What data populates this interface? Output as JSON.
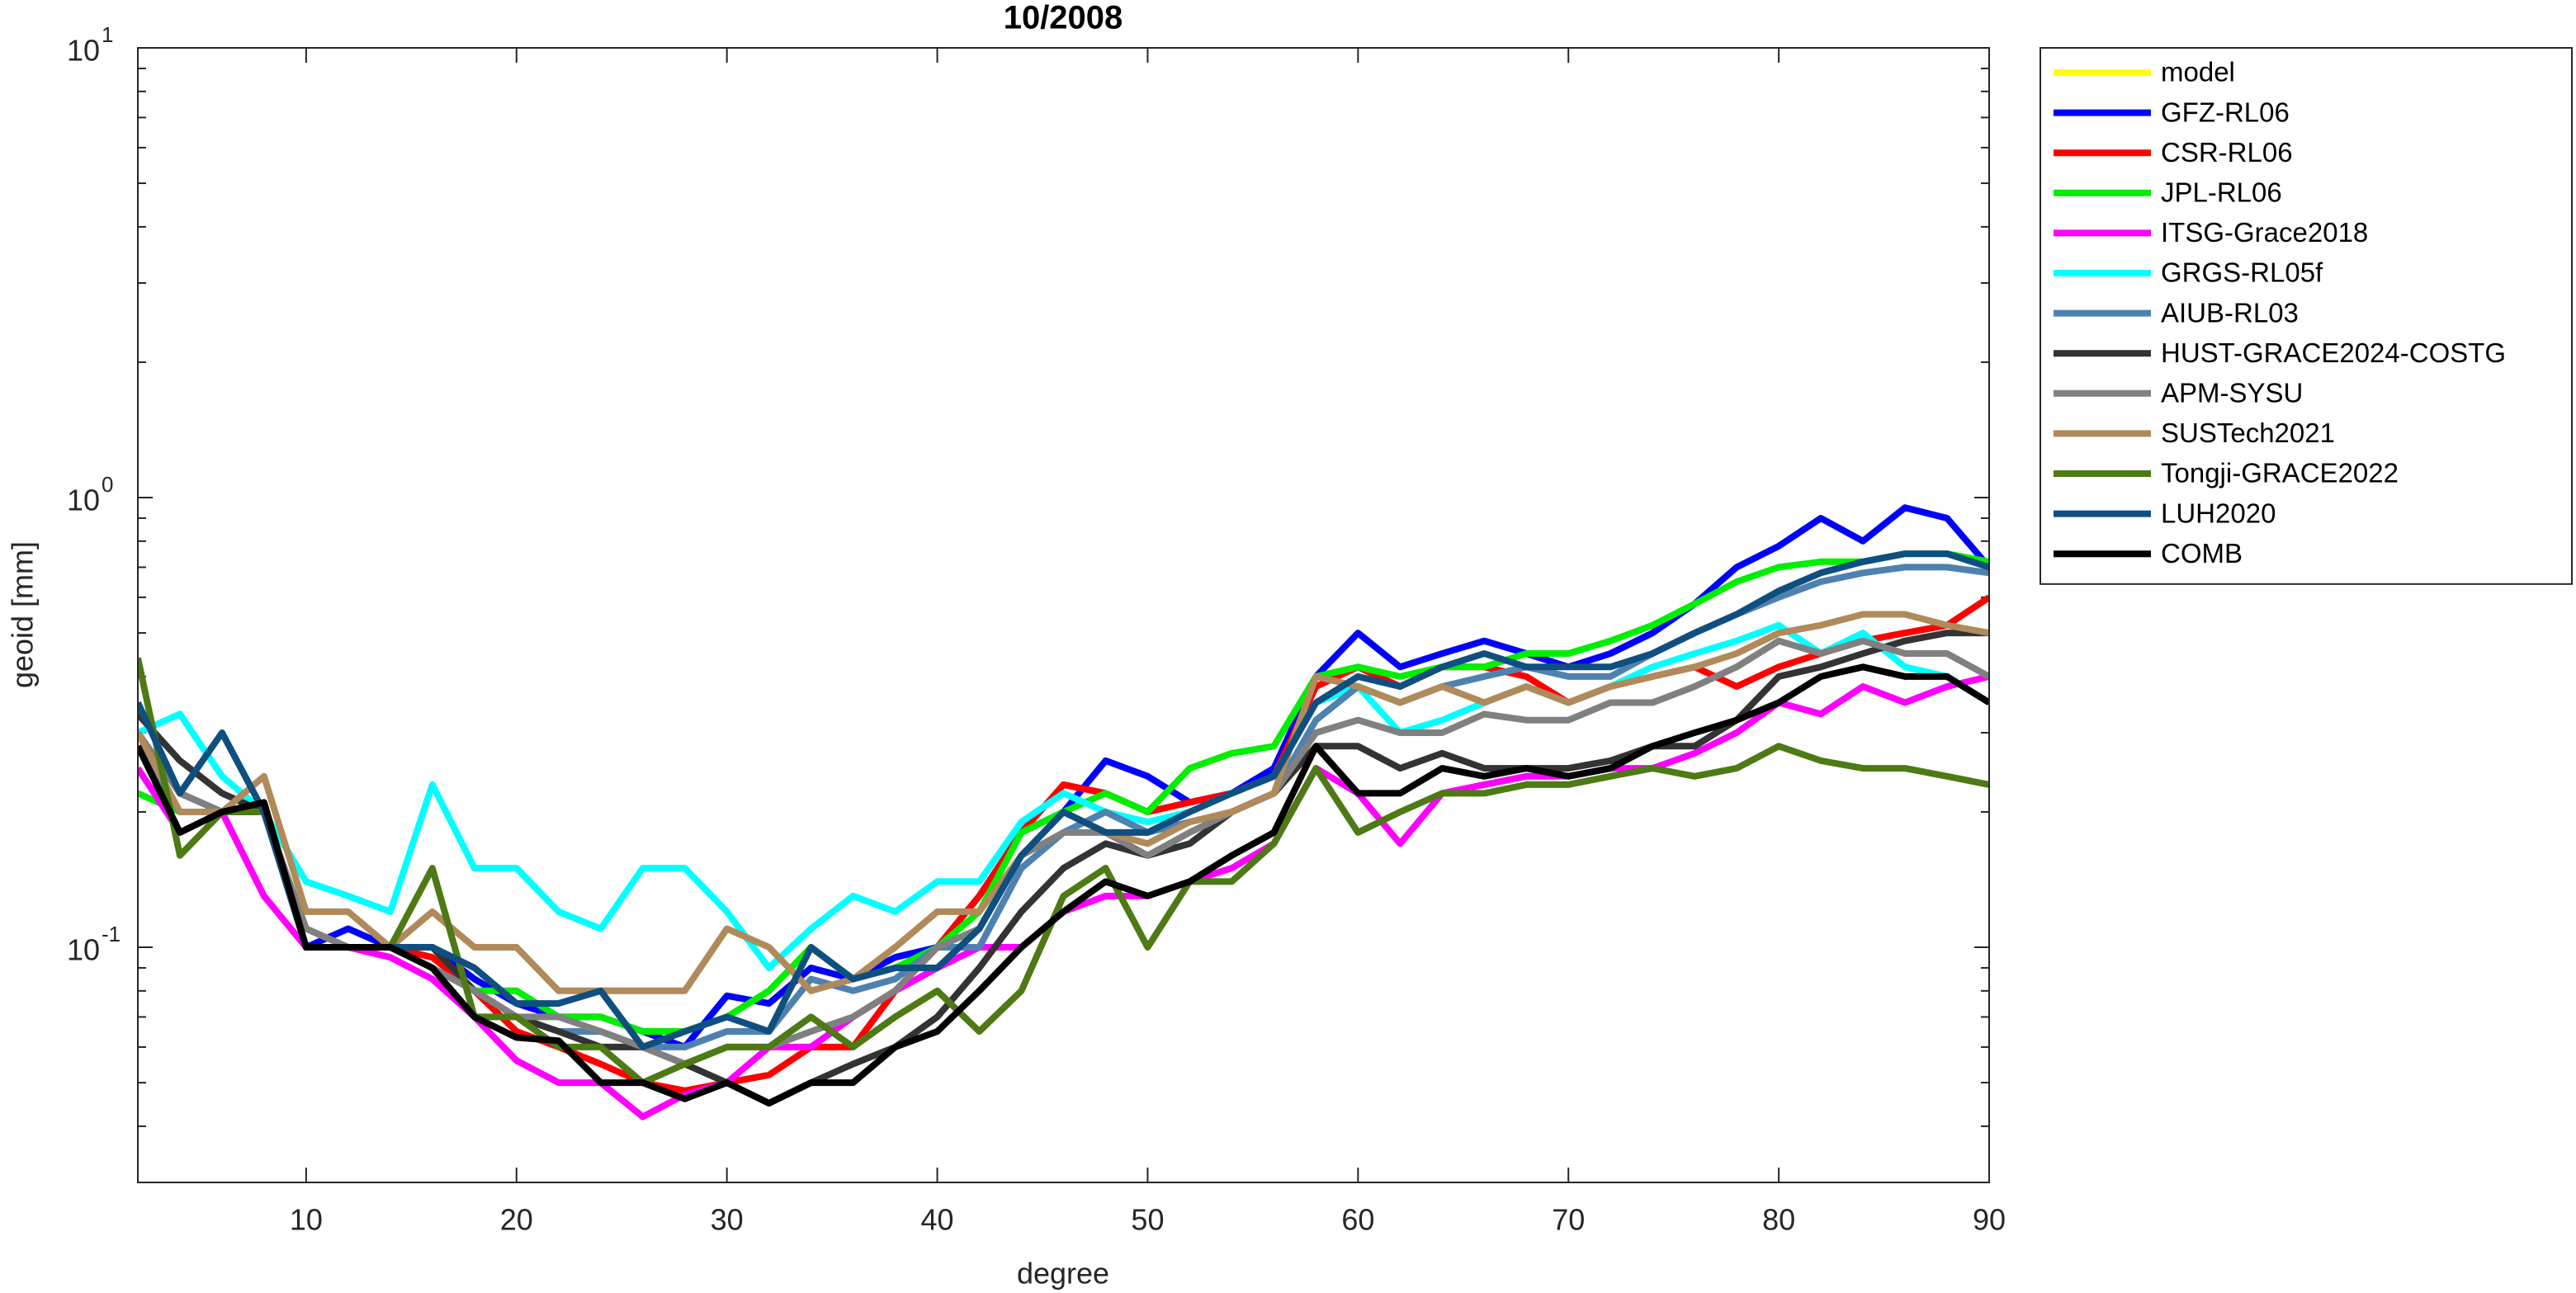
{
  "chart_data": {
    "type": "line",
    "title": "10/2008",
    "x_label": "degree",
    "y_label": "geoid [mm]",
    "log_y": true,
    "legend": "outside-right",
    "x": [
      2,
      4,
      6,
      8,
      10,
      12,
      14,
      16,
      18,
      20,
      22,
      24,
      26,
      28,
      30,
      32,
      34,
      36,
      38,
      40,
      42,
      44,
      46,
      48,
      50,
      52,
      54,
      56,
      58,
      60,
      62,
      64,
      66,
      68,
      70,
      72,
      74,
      76,
      78,
      80,
      82,
      84,
      86,
      88,
      90
    ],
    "xlim": [
      2,
      90
    ],
    "xticks": [
      10,
      20,
      30,
      40,
      50,
      60,
      70,
      80,
      90
    ],
    "ylim": [
      0.03,
      10
    ],
    "yticks": [
      {
        "value": 0.1,
        "label": "10",
        "exponent": "-1"
      },
      {
        "value": 1,
        "label": "10",
        "exponent": "0"
      },
      {
        "value": 10,
        "label": "10",
        "exponent": "1"
      }
    ],
    "minor_yticks": [
      0.03,
      0.04,
      0.05,
      0.06,
      0.07,
      0.08,
      0.09,
      0.2,
      0.3,
      0.4,
      0.5,
      0.6,
      0.7,
      0.8,
      0.9,
      2,
      3,
      4,
      5,
      6,
      7,
      8,
      9
    ],
    "series": [
      {
        "name": "model",
        "color": "#ffff00",
        "values": [
          null,
          null,
          null,
          null,
          null,
          null,
          null,
          null,
          null,
          null,
          null,
          null,
          null,
          null,
          null,
          null,
          null,
          null,
          null,
          null,
          null,
          null,
          null,
          null,
          null,
          null,
          null,
          null,
          null,
          null,
          null,
          null,
          null,
          null,
          null,
          null,
          null,
          null,
          null,
          null,
          null,
          null,
          null,
          null,
          null
        ]
      },
      {
        "name": "GFZ-RL06",
        "color": "#0000ff",
        "values": [
          0.3,
          0.22,
          0.2,
          0.2,
          0.1,
          0.11,
          0.1,
          0.1,
          0.085,
          0.075,
          0.07,
          0.07,
          0.065,
          0.06,
          0.078,
          0.075,
          0.09,
          0.085,
          0.095,
          0.1,
          0.13,
          0.18,
          0.2,
          0.26,
          0.24,
          0.21,
          0.22,
          0.25,
          0.4,
          0.5,
          0.42,
          0.45,
          0.48,
          0.45,
          0.42,
          0.45,
          0.5,
          0.58,
          0.7,
          0.78,
          0.9,
          0.8,
          0.95,
          0.9,
          0.7
        ]
      },
      {
        "name": "CSR-RL06",
        "color": "#ff0000",
        "values": [
          0.28,
          0.2,
          0.2,
          0.2,
          0.1,
          0.1,
          0.1,
          0.095,
          0.08,
          0.065,
          0.06,
          0.055,
          0.05,
          0.048,
          0.05,
          0.052,
          0.06,
          0.06,
          0.08,
          0.1,
          0.13,
          0.18,
          0.23,
          0.22,
          0.2,
          0.21,
          0.22,
          0.24,
          0.38,
          0.42,
          0.38,
          0.42,
          0.42,
          0.4,
          0.35,
          0.38,
          0.4,
          0.42,
          0.38,
          0.42,
          0.45,
          0.48,
          0.5,
          0.52,
          0.6
        ]
      },
      {
        "name": "JPL-RL06",
        "color": "#00ee00",
        "values": [
          0.22,
          0.2,
          0.2,
          0.2,
          0.1,
          0.1,
          0.1,
          0.1,
          0.08,
          0.08,
          0.07,
          0.07,
          0.065,
          0.065,
          0.07,
          0.08,
          0.1,
          0.085,
          0.09,
          0.1,
          0.12,
          0.18,
          0.2,
          0.22,
          0.2,
          0.25,
          0.27,
          0.28,
          0.4,
          0.42,
          0.4,
          0.42,
          0.42,
          0.45,
          0.45,
          0.48,
          0.52,
          0.58,
          0.65,
          0.7,
          0.72,
          0.72,
          0.75,
          0.75,
          0.72
        ]
      },
      {
        "name": "ITSG-Grace2018",
        "color": "#ff00ff",
        "values": [
          0.25,
          0.18,
          0.2,
          0.13,
          0.1,
          0.1,
          0.095,
          0.085,
          0.07,
          0.056,
          0.05,
          0.05,
          0.042,
          0.047,
          0.05,
          0.06,
          0.06,
          0.07,
          0.08,
          0.09,
          0.1,
          0.1,
          0.12,
          0.13,
          0.13,
          0.14,
          0.15,
          0.17,
          0.25,
          0.22,
          0.17,
          0.22,
          0.23,
          0.24,
          0.24,
          0.25,
          0.25,
          0.27,
          0.3,
          0.35,
          0.33,
          0.38,
          0.35,
          0.38,
          0.4
        ]
      },
      {
        "name": "GRGS-RL05f",
        "color": "#00ffff",
        "values": [
          0.3,
          0.33,
          0.24,
          0.2,
          0.14,
          0.13,
          0.12,
          0.23,
          0.15,
          0.15,
          0.12,
          0.11,
          0.15,
          0.15,
          0.12,
          0.09,
          0.11,
          0.13,
          0.12,
          0.14,
          0.14,
          0.19,
          0.22,
          0.2,
          0.19,
          0.2,
          0.22,
          0.24,
          0.35,
          0.38,
          0.3,
          0.32,
          0.35,
          0.38,
          0.35,
          0.38,
          0.42,
          0.45,
          0.48,
          0.52,
          0.45,
          0.5,
          0.42,
          0.4,
          0.35
        ]
      },
      {
        "name": "AIUB-RL03",
        "color": "#4f81b0",
        "values": [
          0.28,
          0.2,
          0.2,
          0.2,
          0.11,
          0.1,
          0.1,
          0.09,
          0.08,
          0.07,
          0.065,
          0.065,
          0.06,
          0.06,
          0.065,
          0.065,
          0.085,
          0.08,
          0.085,
          0.1,
          0.1,
          0.15,
          0.18,
          0.2,
          0.18,
          0.19,
          0.2,
          0.22,
          0.32,
          0.38,
          0.35,
          0.38,
          0.4,
          0.42,
          0.4,
          0.4,
          0.45,
          0.5,
          0.55,
          0.6,
          0.65,
          0.68,
          0.7,
          0.7,
          0.68
        ]
      },
      {
        "name": "HUST-GRACE2024-COSTG",
        "color": "#333333",
        "values": [
          0.33,
          0.26,
          0.22,
          0.2,
          0.1,
          0.1,
          0.1,
          0.1,
          0.08,
          0.07,
          0.065,
          0.06,
          0.06,
          0.055,
          0.05,
          0.045,
          0.05,
          0.055,
          0.06,
          0.07,
          0.09,
          0.12,
          0.15,
          0.17,
          0.16,
          0.17,
          0.2,
          0.22,
          0.28,
          0.28,
          0.25,
          0.27,
          0.25,
          0.25,
          0.25,
          0.26,
          0.28,
          0.28,
          0.32,
          0.4,
          0.42,
          0.45,
          0.48,
          0.5,
          0.5
        ]
      },
      {
        "name": "APM-SYSU",
        "color": "#808080",
        "values": [
          0.3,
          0.22,
          0.2,
          0.2,
          0.11,
          0.1,
          0.1,
          0.09,
          0.08,
          0.07,
          0.07,
          0.065,
          0.06,
          0.055,
          0.06,
          0.06,
          0.065,
          0.07,
          0.08,
          0.1,
          0.11,
          0.16,
          0.18,
          0.18,
          0.16,
          0.18,
          0.2,
          0.22,
          0.3,
          0.32,
          0.3,
          0.3,
          0.33,
          0.32,
          0.32,
          0.35,
          0.35,
          0.38,
          0.42,
          0.48,
          0.45,
          0.48,
          0.45,
          0.45,
          0.4
        ]
      },
      {
        "name": "SUSTech2021",
        "color": "#b08a5a",
        "values": [
          0.3,
          0.2,
          0.2,
          0.24,
          0.12,
          0.12,
          0.1,
          0.12,
          0.1,
          0.1,
          0.08,
          0.08,
          0.08,
          0.08,
          0.11,
          0.1,
          0.08,
          0.085,
          0.1,
          0.12,
          0.12,
          0.16,
          0.2,
          0.18,
          0.17,
          0.19,
          0.2,
          0.22,
          0.4,
          0.38,
          0.35,
          0.38,
          0.35,
          0.38,
          0.35,
          0.38,
          0.4,
          0.42,
          0.45,
          0.5,
          0.52,
          0.55,
          0.55,
          0.52,
          0.5
        ]
      },
      {
        "name": "Tongji-GRACE2022",
        "color": "#4d7a14",
        "values": [
          0.44,
          0.16,
          0.2,
          0.2,
          0.1,
          0.1,
          0.1,
          0.15,
          0.07,
          0.07,
          0.06,
          0.06,
          0.05,
          0.055,
          0.06,
          0.06,
          0.07,
          0.06,
          0.07,
          0.08,
          0.065,
          0.08,
          0.13,
          0.15,
          0.1,
          0.14,
          0.14,
          0.17,
          0.25,
          0.18,
          0.2,
          0.22,
          0.22,
          0.23,
          0.23,
          0.24,
          0.25,
          0.24,
          0.25,
          0.28,
          0.26,
          0.25,
          0.25,
          0.24,
          0.23
        ]
      },
      {
        "name": "LUH2020",
        "color": "#0f4f80",
        "values": [
          0.35,
          0.22,
          0.3,
          0.2,
          0.1,
          0.1,
          0.1,
          0.1,
          0.09,
          0.075,
          0.075,
          0.08,
          0.06,
          0.065,
          0.07,
          0.065,
          0.1,
          0.085,
          0.09,
          0.09,
          0.11,
          0.16,
          0.2,
          0.18,
          0.18,
          0.2,
          0.22,
          0.24,
          0.35,
          0.4,
          0.38,
          0.42,
          0.45,
          0.42,
          0.42,
          0.42,
          0.45,
          0.5,
          0.55,
          0.62,
          0.68,
          0.72,
          0.75,
          0.75,
          0.7
        ]
      },
      {
        "name": "COMB",
        "color": "#000000",
        "values": [
          0.28,
          0.18,
          0.2,
          0.21,
          0.1,
          0.1,
          0.1,
          0.09,
          0.07,
          0.063,
          0.062,
          0.05,
          0.05,
          0.046,
          0.05,
          0.045,
          0.05,
          0.05,
          0.06,
          0.065,
          0.08,
          0.1,
          0.12,
          0.14,
          0.13,
          0.14,
          0.16,
          0.18,
          0.28,
          0.22,
          0.22,
          0.25,
          0.24,
          0.25,
          0.24,
          0.25,
          0.28,
          0.3,
          0.32,
          0.35,
          0.4,
          0.42,
          0.4,
          0.4,
          0.35
        ]
      }
    ]
  }
}
